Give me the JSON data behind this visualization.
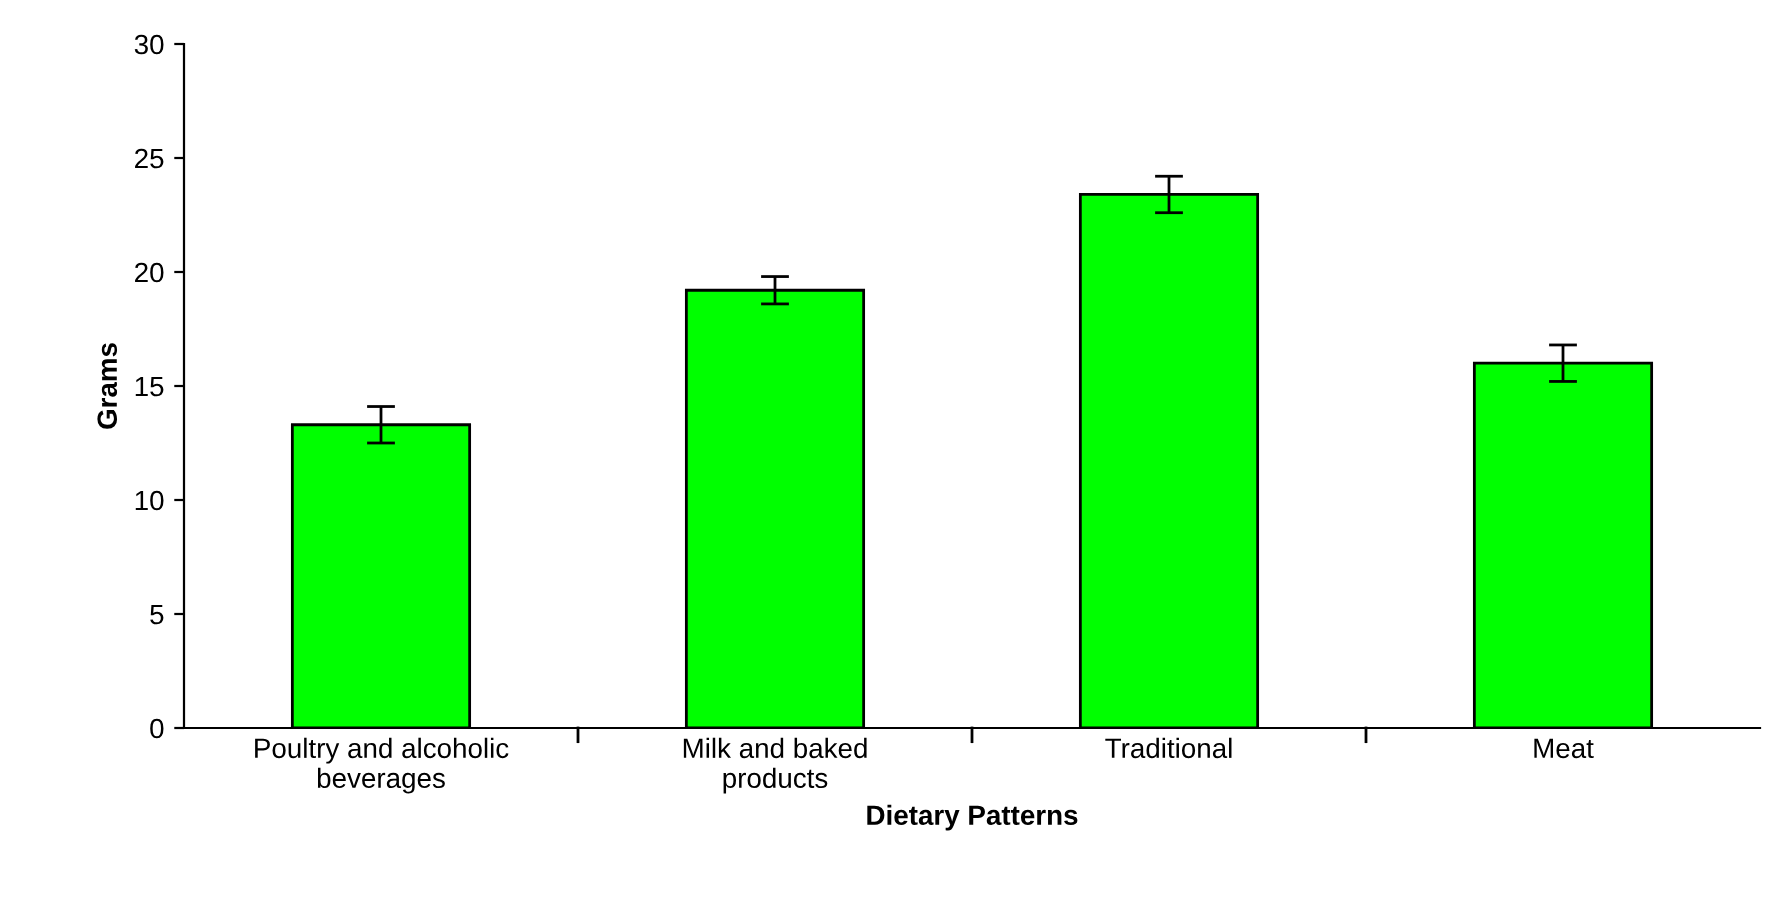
{
  "chart_data": {
    "type": "bar",
    "xlabel": "Dietary Patterns",
    "ylabel": "Grams",
    "categories": [
      "Poultry and alcoholic\nbeverages",
      "Milk and baked\nproducts",
      "Traditional",
      "Meat"
    ],
    "values": [
      13.3,
      19.2,
      23.4,
      16.0
    ],
    "errors": [
      0.8,
      0.6,
      0.8,
      0.8
    ],
    "color": "#00ff00",
    "ylim": [
      0,
      30
    ],
    "yticks": [
      0,
      5,
      10,
      15,
      20,
      25,
      30
    ],
    "grid": false,
    "legend": false
  }
}
